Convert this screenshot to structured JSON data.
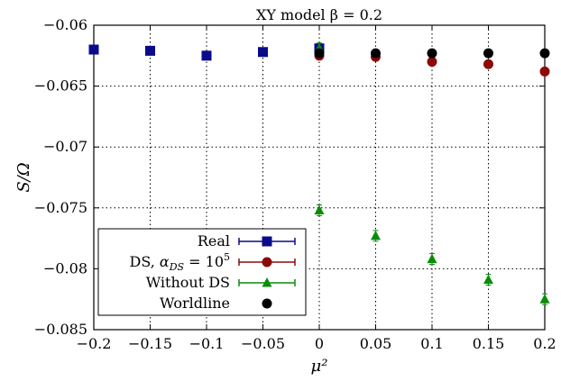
{
  "chart_data": {
    "type": "scatter",
    "title": "XY model β = 0.2",
    "xlabel": "μ²",
    "ylabel": "S/Ω",
    "xlim": [
      -0.2,
      0.2
    ],
    "ylim": [
      -0.085,
      -0.06
    ],
    "x_ticks": [
      -0.2,
      -0.15,
      -0.1,
      -0.05,
      0,
      0.05,
      0.1,
      0.15,
      0.2
    ],
    "x_tick_labels": [
      "−0.2",
      "−0.15",
      "−0.1",
      "−0.05",
      "0",
      "0.05",
      "0.1",
      "0.15",
      "0.2"
    ],
    "y_ticks": [
      -0.06,
      -0.065,
      -0.07,
      -0.075,
      -0.08,
      -0.085
    ],
    "y_tick_labels": [
      "−0.06",
      "−0.065",
      "−0.07",
      "−0.075",
      "−0.08",
      "−0.085"
    ],
    "grid": true,
    "legend_position": "bottom-left",
    "series": [
      {
        "name": "Real",
        "marker": "square",
        "color": "#0a0a8c",
        "x": [
          -0.2,
          -0.15,
          -0.1,
          -0.05,
          0
        ],
        "y": [
          -0.062,
          -0.0621,
          -0.0625,
          -0.0622,
          -0.0619
        ]
      },
      {
        "name": "DS, α_DS = 10^5",
        "legend_text": "DS, ",
        "legend_math": "α",
        "legend_sub": "DS",
        "legend_eq": " = 10",
        "legend_sup": "5",
        "marker": "circle",
        "color": "#8c0a0a",
        "x": [
          0,
          0.05,
          0.1,
          0.15,
          0.2
        ],
        "y": [
          -0.0625,
          -0.0626,
          -0.063,
          -0.0632,
          -0.0638
        ]
      },
      {
        "name": "Without DS",
        "marker": "triangle",
        "color": "#0a8c0a",
        "x": [
          0,
          0,
          0.05,
          0.1,
          0.15,
          0.2
        ],
        "y": [
          -0.0619,
          -0.0752,
          -0.0773,
          -0.0792,
          -0.0809,
          -0.0825
        ]
      },
      {
        "name": "Worldline",
        "marker": "circle",
        "color": "#000000",
        "x": [
          0,
          0.05,
          0.1,
          0.15,
          0.2
        ],
        "y": [
          -0.0623,
          -0.0623,
          -0.0623,
          -0.0623,
          -0.0623
        ]
      }
    ]
  }
}
